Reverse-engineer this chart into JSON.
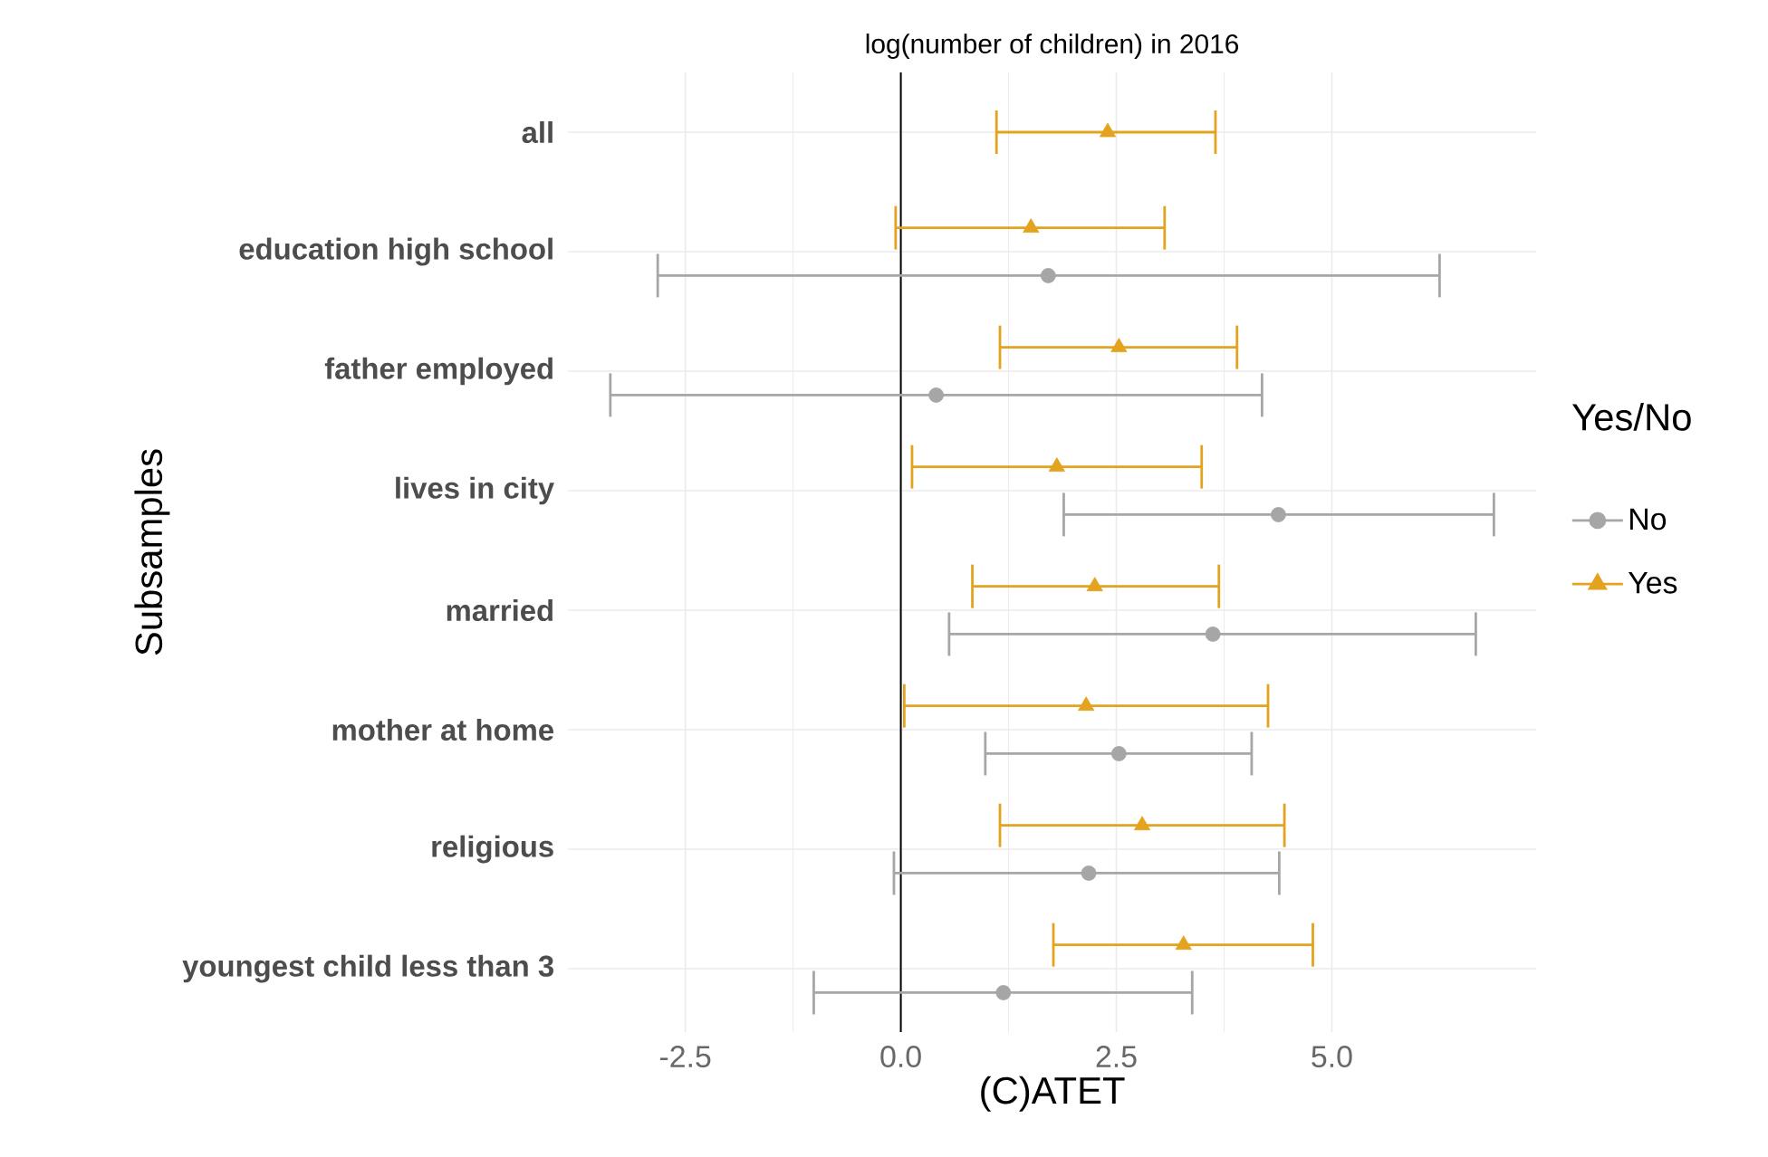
{
  "chart_data": {
    "type": "scatter",
    "orientation": "horizontal",
    "title": "log(number of children) in 2016",
    "xlabel": "(C)ATET",
    "ylabel": "Subsamples",
    "legend_title": "Yes/No",
    "legend": "right",
    "grid": true,
    "categories": [
      "all",
      "education high school",
      "father employed",
      "lives in city",
      "married",
      "mother at home",
      "religious",
      "youngest child less than 3"
    ],
    "xlim": [
      -3.86,
      7.37
    ],
    "xticks": [
      {
        "value": -2.5,
        "label": "-2.5"
      },
      {
        "value": 0,
        "label": "0.0"
      },
      {
        "value": 2.5,
        "label": "2.5"
      },
      {
        "value": 5,
        "label": "5.0"
      }
    ],
    "ref_lines": [
      {
        "axis": "x",
        "value": 0,
        "color": "#000000"
      }
    ],
    "series": [
      {
        "name": "No",
        "color": "#a6a6a6",
        "marker": "circle",
        "values": [
          null,
          1.71,
          0.41,
          4.38,
          3.62,
          2.53,
          2.18,
          1.19
        ],
        "errors": [
          null,
          [
            -2.82,
            6.25
          ],
          [
            -3.37,
            4.19
          ],
          [
            1.89,
            6.88
          ],
          [
            0.56,
            6.67
          ],
          [
            0.98,
            4.07
          ],
          [
            -0.08,
            4.39
          ],
          [
            -1.01,
            3.38
          ]
        ]
      },
      {
        "name": "Yes",
        "color": "#e3a31e",
        "marker": "triangle",
        "values": [
          2.4,
          1.51,
          2.53,
          1.81,
          2.25,
          2.15,
          2.8,
          3.28
        ],
        "errors": [
          [
            1.11,
            3.65
          ],
          [
            -0.06,
            3.06
          ],
          [
            1.15,
            3.9
          ],
          [
            0.13,
            3.49
          ],
          [
            0.83,
            3.69
          ],
          [
            0.04,
            4.26
          ],
          [
            1.15,
            4.45
          ],
          [
            1.77,
            4.78
          ]
        ]
      }
    ]
  }
}
